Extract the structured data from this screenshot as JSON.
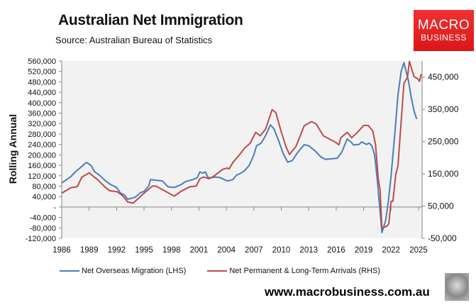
{
  "header": {
    "title": "Australian Net Immigration",
    "source": "Source: Australian Bureau of Statistics",
    "logo_line1": "MACRO",
    "logo_line2": "BUSINESS"
  },
  "footer": {
    "website": "www.macrobusiness.com.au"
  },
  "chart_data": {
    "type": "line",
    "title": "Australian Net Immigration",
    "ylabel": "Rolling Annual",
    "ylim": [
      -120000,
      560000
    ],
    "y2lim": [
      -50000,
      500000
    ],
    "xlim": [
      1986,
      2025.5
    ],
    "x_ticks": [
      1986,
      1989,
      1992,
      1995,
      1998,
      2001,
      2004,
      2007,
      2010,
      2013,
      2016,
      2019,
      2022,
      2025
    ],
    "y_ticks": [
      560000,
      520000,
      480000,
      440000,
      400000,
      360000,
      320000,
      280000,
      240000,
      200000,
      160000,
      120000,
      80000,
      40000,
      0,
      -40000,
      -80000,
      -120000
    ],
    "y_tick_labels": [
      "560,000",
      "520,000",
      "480,000",
      "440,000",
      "400,000",
      "360,000",
      "320,000",
      "280,000",
      "240,000",
      "200,000",
      "160,000",
      "120,000",
      "80,000",
      "40,000",
      "-",
      "-40,000",
      "-80,000",
      "-120,000"
    ],
    "y2_ticks": [
      450000,
      350000,
      250000,
      150000,
      50000,
      -50000
    ],
    "y2_tick_labels": [
      "450,000",
      "350,000",
      "250,000",
      "150,000",
      "50,000",
      "-50,000"
    ],
    "grid": false,
    "legend_position": "bottom",
    "series": [
      {
        "name": "Net Overseas Migration (LHS)",
        "axis": "left",
        "color": "#4a7ebb",
        "x": [
          1986.0,
          1987.0,
          1987.5,
          1988.0,
          1988.7,
          1989.2,
          1989.6,
          1990.1,
          1990.8,
          1991.3,
          1992.0,
          1992.4,
          1992.9,
          1993.2,
          1994.0,
          1994.6,
          1995.0,
          1995.5,
          1995.7,
          1996.5,
          1997.0,
          1997.6,
          1998.3,
          1999.0,
          1999.5,
          2000.3,
          2000.8,
          2001.1,
          2001.4,
          2001.7,
          2002.0,
          2002.8,
          2003.3,
          2004.1,
          2004.7,
          2005.1,
          2005.6,
          2006.0,
          2006.5,
          2007.0,
          2007.3,
          2007.8,
          2008.3,
          2008.8,
          2009.2,
          2009.7,
          2010.2,
          2010.7,
          2011.2,
          2011.8,
          2012.5,
          2013.0,
          2013.7,
          2014.3,
          2014.8,
          2015.5,
          2016.1,
          2016.6,
          2017.2,
          2017.6,
          2017.9,
          2018.5,
          2018.8,
          2019.3,
          2019.6,
          2019.9,
          2020.2,
          2020.5,
          2021.0,
          2021.4,
          2021.7,
          2022.0,
          2022.4,
          2022.75,
          2023.1,
          2023.4,
          2023.9,
          2024.2,
          2024.5,
          2024.8
        ],
        "values": [
          92000,
          117000,
          135000,
          150000,
          171000,
          160000,
          135000,
          123000,
          100000,
          87000,
          75000,
          55000,
          45000,
          30000,
          37000,
          55000,
          60000,
          80000,
          105000,
          102000,
          100000,
          78000,
          75000,
          85000,
          97000,
          105000,
          112000,
          135000,
          130000,
          135000,
          112000,
          115000,
          113000,
          100000,
          105000,
          122000,
          130000,
          140000,
          160000,
          200000,
          235000,
          245000,
          275000,
          315000,
          300000,
          255000,
          205000,
          172000,
          178000,
          210000,
          239000,
          235000,
          215000,
          193000,
          183000,
          185000,
          187000,
          210000,
          261000,
          250000,
          238000,
          240000,
          250000,
          240000,
          245000,
          235000,
          200000,
          100000,
          -98000,
          -52000,
          20000,
          120000,
          280000,
          430000,
          520000,
          554000,
          484000,
          420000,
          370000,
          337000
        ]
      },
      {
        "name": "Net Permanent & Long-Term Arrivals (RHS)",
        "axis": "right",
        "color": "#be4b48",
        "x": [
          1986.0,
          1987.0,
          1987.7,
          1988.2,
          1989.0,
          1990.0,
          1990.7,
          1991.2,
          1992.1,
          1992.7,
          1993.2,
          1993.8,
          1994.8,
          1995.9,
          1996.3,
          1997.4,
          1998.3,
          1999.1,
          2000.0,
          2000.7,
          2001.1,
          2001.5,
          2002.1,
          2002.5,
          2003.6,
          2004.1,
          2004.3,
          2004.7,
          2005.6,
          2006.0,
          2006.6,
          2007.2,
          2007.7,
          2008.3,
          2009.0,
          2009.4,
          2010.0,
          2010.5,
          2010.9,
          2011.6,
          2012.5,
          2013.3,
          2013.8,
          2014.6,
          2015.8,
          2016.3,
          2016.5,
          2017.2,
          2017.7,
          2018.3,
          2019.0,
          2019.5,
          2020.0,
          2020.3,
          2020.6,
          2020.8,
          2021.0,
          2021.5,
          2021.75,
          2022.0,
          2022.2,
          2022.5,
          2022.75,
          2023.4,
          2023.8,
          2024.0,
          2024.5,
          2024.9,
          2025.1,
          2025.3
        ],
        "values": [
          90000,
          107000,
          110000,
          140000,
          153000,
          130000,
          110000,
          98000,
          94000,
          81000,
          63000,
          59000,
          85000,
          112000,
          112000,
          95000,
          81000,
          97000,
          110000,
          112000,
          135000,
          140000,
          135000,
          140000,
          164000,
          168000,
          165000,
          185000,
          215000,
          230000,
          245000,
          279000,
          268000,
          290000,
          349000,
          340000,
          280000,
          235000,
          210000,
          235000,
          299000,
          312000,
          305000,
          268000,
          250000,
          240000,
          262000,
          279000,
          262000,
          278000,
          300000,
          300000,
          283000,
          240000,
          133000,
          100000,
          -18000,
          -13000,
          -5000,
          65000,
          65000,
          147000,
          175000,
          430000,
          450000,
          499000,
          452000,
          445000,
          437000,
          460000
        ]
      }
    ]
  }
}
